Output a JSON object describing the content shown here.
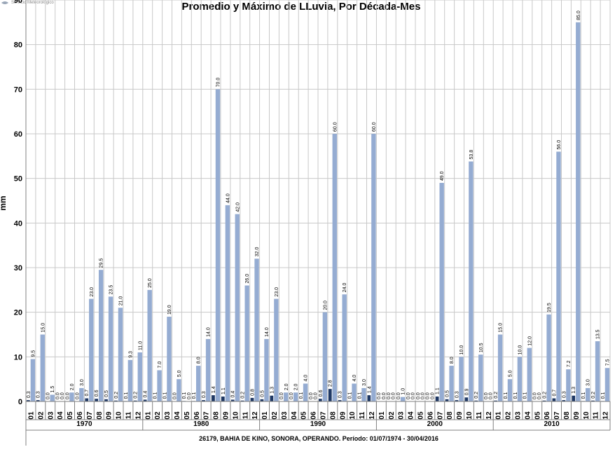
{
  "colors": {
    "max": "#95acd2",
    "avg": "#1f3864",
    "grid": "#c8c8c8",
    "axis": "#808080"
  },
  "header": {
    "logo_text": "Servicio Meteorológico"
  },
  "chart_data": {
    "type": "bar",
    "title": "Promedio y Máximo de LLuvia, Por Década-Mes",
    "ylabel": "mm",
    "xlabel": "",
    "ylim": [
      0,
      90
    ],
    "yticks": [
      0,
      10,
      20,
      30,
      40,
      50,
      60,
      70,
      80,
      90
    ],
    "grid": true,
    "footer": "26179, BAHIA DE KINO, SONORA, OPERANDO. Período: 01/07/1974 - 30/04/2016",
    "months": [
      "01",
      "02",
      "03",
      "04",
      "05",
      "06",
      "07",
      "08",
      "09",
      "10",
      "11",
      "12"
    ],
    "decades": [
      {
        "label": "1970",
        "max": [
          9.5,
          15.0,
          1.5,
          0.0,
          2.0,
          3.0,
          23.0,
          29.5,
          23.5,
          21.0,
          9.3,
          11.0
        ],
        "avg": [
          0.3,
          0.3,
          0.0,
          0.0,
          0.0,
          0.0,
          0.7,
          0.6,
          0.5,
          0.2,
          0.1,
          0.2
        ]
      },
      {
        "label": "1980",
        "max": [
          25.0,
          7.0,
          19.0,
          5.0,
          0.0,
          8.0,
          14.0,
          70.0,
          44.0,
          42.0,
          26.0,
          32.0
        ],
        "avg": [
          0.4,
          0.1,
          0.1,
          0.0,
          0.1,
          0.1,
          0.3,
          1.4,
          1.1,
          0.4,
          0.2,
          0.8
        ]
      },
      {
        "label": "1990",
        "max": [
          14.0,
          23.0,
          2.0,
          2.0,
          4.0,
          0.0,
          20.0,
          60.0,
          24.0,
          4.0,
          3.0,
          60.0
        ],
        "avg": [
          0.5,
          1.3,
          0.0,
          0.0,
          0.1,
          0.0,
          0.6,
          2.8,
          0.3,
          0.1,
          0.1,
          1.4
        ]
      },
      {
        "label": "2000",
        "max": [
          0.0,
          0.0,
          1.0,
          0.0,
          0.0,
          0.0,
          49.0,
          8.0,
          10.0,
          53.8,
          10.5,
          0.0
        ],
        "avg": [
          0.0,
          0.0,
          0.0,
          0.0,
          0.0,
          0.0,
          1.1,
          0.5,
          0.3,
          0.9,
          0.2,
          0.0
        ]
      },
      {
        "label": "2010",
        "max": [
          15.0,
          5.0,
          10.0,
          12.0,
          0.0,
          19.5,
          56.0,
          7.2,
          85.0,
          3.0,
          13.5,
          7.5
        ],
        "avg": [
          0.2,
          0.1,
          0.1,
          0.1,
          0.0,
          0.2,
          0.7,
          0.3,
          1.3,
          0.1,
          0.2,
          0.1
        ]
      }
    ]
  }
}
